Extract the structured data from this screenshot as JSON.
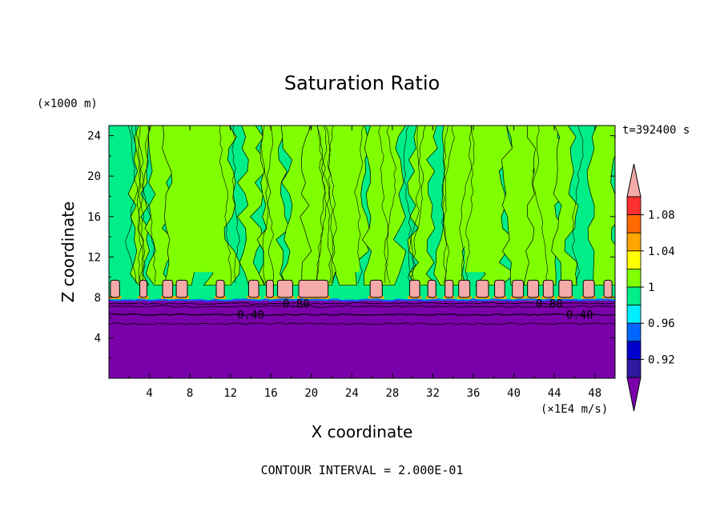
{
  "chart_data": {
    "type": "heatmap",
    "title": "Saturation Ratio",
    "xlabel": "X coordinate",
    "ylabel": "Z coordinate",
    "x_unit": "(×1E4 m/s)",
    "y_unit": "(×1000 m)",
    "time_label": "t=392400 s",
    "footer": "CONTOUR INTERVAL = 2.000E-01",
    "xlim": [
      0,
      50
    ],
    "ylim": [
      0,
      25
    ],
    "xticks": [
      "4",
      "8",
      "12",
      "16",
      "20",
      "24",
      "28",
      "32",
      "36",
      "40",
      "44",
      "48"
    ],
    "yticks": [
      "4",
      "8",
      "12",
      "16",
      "20",
      "24"
    ],
    "colorbar": {
      "labels": [
        "1.08",
        "1.04",
        "1",
        "0.96",
        "0.92"
      ],
      "bands": [
        {
          "lo": 1.1,
          "hi": null,
          "color": "#f4aaa8"
        },
        {
          "lo": 1.08,
          "hi": 1.1,
          "color": "#ff3030"
        },
        {
          "lo": 1.06,
          "hi": 1.08,
          "color": "#ff6a00"
        },
        {
          "lo": 1.04,
          "hi": 1.06,
          "color": "#ffa500"
        },
        {
          "lo": 1.02,
          "hi": 1.04,
          "color": "#ffff00"
        },
        {
          "lo": 1.0,
          "hi": 1.02,
          "color": "#80ff00"
        },
        {
          "lo": 0.98,
          "hi": 1.0,
          "color": "#00ee88"
        },
        {
          "lo": 0.96,
          "hi": 0.98,
          "color": "#00eeff"
        },
        {
          "lo": 0.94,
          "hi": 0.96,
          "color": "#0066ff"
        },
        {
          "lo": 0.92,
          "hi": 0.94,
          "color": "#0000cc"
        },
        {
          "lo": 0.9,
          "hi": 0.92,
          "color": "#2e1a9e"
        },
        {
          "lo": null,
          "hi": 0.9,
          "color": "#7a00aa"
        }
      ]
    },
    "contour_labels": [
      {
        "text": "0.80",
        "x": 18.5,
        "z": 7.4
      },
      {
        "text": "0.40",
        "x": 14.0,
        "z": 6.3
      },
      {
        "text": "0.80",
        "x": 43.5,
        "z": 7.4
      },
      {
        "text": "0.40",
        "x": 46.5,
        "z": 6.3
      }
    ],
    "field": {
      "dry_layer_top_km": 7.7,
      "moist_columns_x": [
        3,
        5,
        7,
        11,
        14,
        16,
        19,
        21,
        24,
        27,
        31,
        34,
        38,
        41,
        43,
        45,
        49
      ],
      "supersat_blobs": [
        {
          "x": 0.6,
          "w": 0.9
        },
        {
          "x": 3.4,
          "w": 0.7
        },
        {
          "x": 5.8,
          "w": 1.0
        },
        {
          "x": 7.2,
          "w": 1.1
        },
        {
          "x": 11.0,
          "w": 0.8
        },
        {
          "x": 14.3,
          "w": 1.0
        },
        {
          "x": 15.9,
          "w": 0.7
        },
        {
          "x": 17.4,
          "w": 1.5
        },
        {
          "x": 20.2,
          "w": 2.9
        },
        {
          "x": 26.4,
          "w": 1.2
        },
        {
          "x": 30.2,
          "w": 1.0
        },
        {
          "x": 31.9,
          "w": 0.8
        },
        {
          "x": 33.6,
          "w": 0.8
        },
        {
          "x": 35.1,
          "w": 1.1
        },
        {
          "x": 36.9,
          "w": 1.2
        },
        {
          "x": 38.6,
          "w": 1.0
        },
        {
          "x": 40.4,
          "w": 1.1
        },
        {
          "x": 41.9,
          "w": 1.1
        },
        {
          "x": 43.4,
          "w": 1.0
        },
        {
          "x": 45.1,
          "w": 1.3
        },
        {
          "x": 47.4,
          "w": 1.1
        },
        {
          "x": 49.3,
          "w": 0.8
        }
      ]
    }
  }
}
